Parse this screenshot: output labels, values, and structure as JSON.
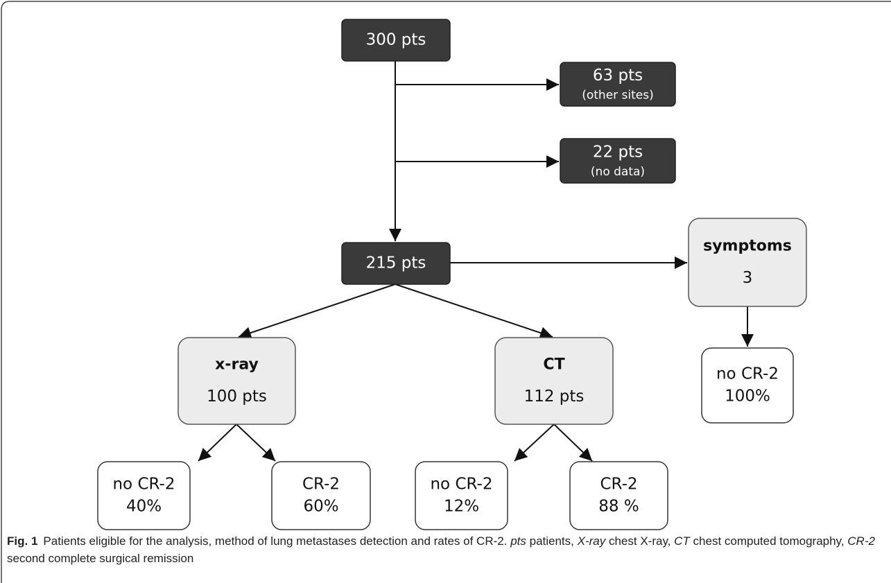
{
  "nodes": [
    {
      "style": "dark",
      "lines": [
        "300 pts"
      ]
    },
    {
      "style": "dark",
      "lines": [
        "63 pts",
        "(other sites)"
      ]
    },
    {
      "style": "dark",
      "lines": [
        "22 pts",
        "(no data)"
      ]
    },
    {
      "style": "dark",
      "lines": [
        "215 pts"
      ]
    },
    {
      "style": "light",
      "title": "symptoms",
      "lines": [
        "3"
      ]
    },
    {
      "style": "light",
      "title": "x-ray",
      "lines": [
        "100 pts"
      ]
    },
    {
      "style": "light",
      "title": "CT",
      "lines": [
        "112 pts"
      ]
    },
    {
      "style": "white",
      "lines": [
        "no CR-2",
        "100%"
      ]
    },
    {
      "style": "white",
      "lines": [
        "no CR-2",
        "40%"
      ]
    },
    {
      "style": "white",
      "lines": [
        "CR-2",
        "60%"
      ]
    },
    {
      "style": "white",
      "lines": [
        "no CR-2",
        "12%"
      ]
    },
    {
      "style": "white",
      "lines": [
        "CR-2",
        "88 %"
      ]
    }
  ],
  "caption": {
    "label": "Fig. 1",
    "text": "Patients eligible for the analysis, method of lung metastases detection and rates of CR-2.",
    "abbreviations": [
      {
        "term": "pts",
        "definition": "patients,"
      },
      {
        "term": "X-ray",
        "definition": "chest X-ray,"
      },
      {
        "term": "CT",
        "definition": "chest computed tomography,"
      },
      {
        "term": "CR-2",
        "definition": "second complete surgical remission"
      }
    ]
  }
}
